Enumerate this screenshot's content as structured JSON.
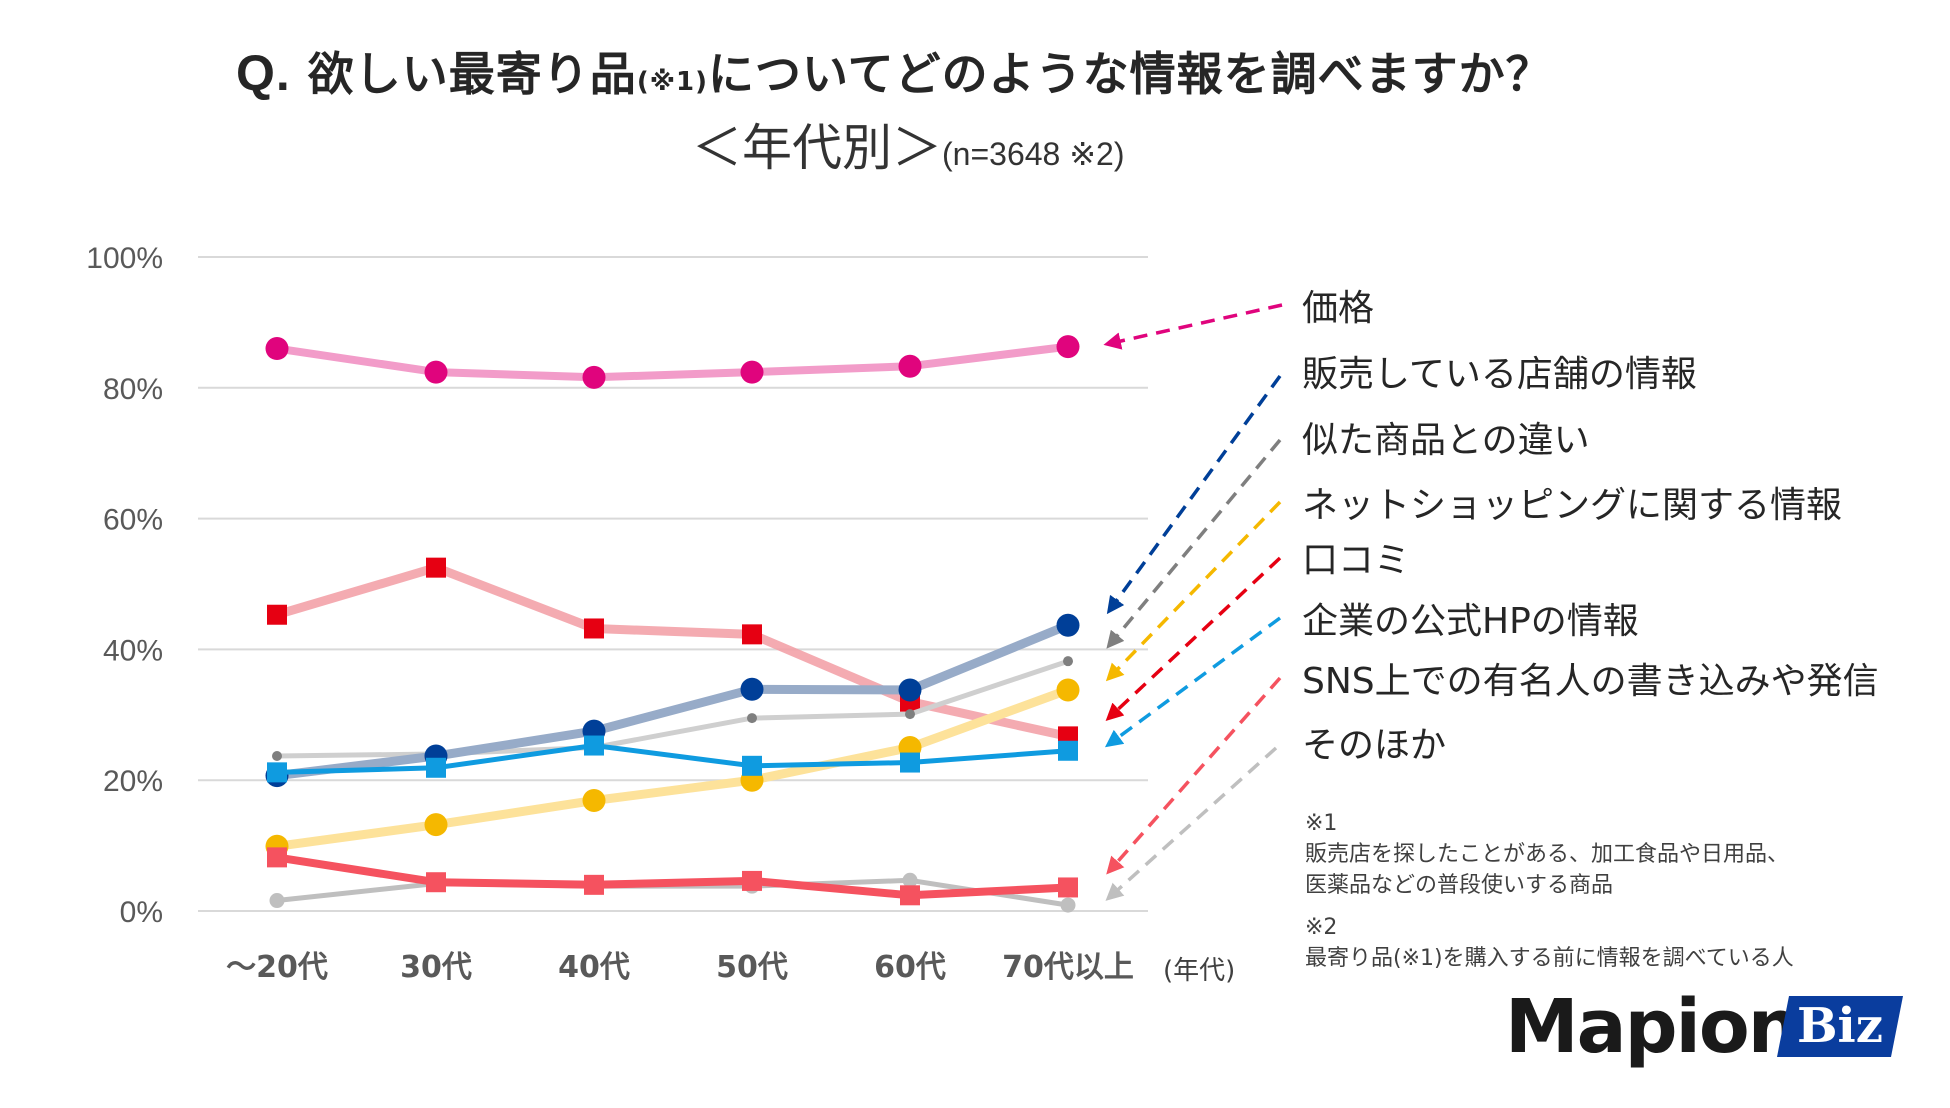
{
  "title": {
    "prefix": "Q.",
    "text_before": " 欲しい最寄り品",
    "note_ref": "(※1)",
    "text_after": "についてどのような情報を調べますか？"
  },
  "subtitle": {
    "main": "＜年代別＞",
    "sample": "(n=3648 ※2)"
  },
  "legend": [
    {
      "label": "価格",
      "color": "#e0047d"
    },
    {
      "label": "販売している店舗の情報",
      "color": "#003f98"
    },
    {
      "label": "似た商品との違い",
      "color": "#7f7f7f"
    },
    {
      "label": "ネットショッピングに関する情報",
      "color": "#f5b800"
    },
    {
      "label": "口コミ",
      "color": "#e60012"
    },
    {
      "label": "企業の公式HPの情報",
      "color": "#0f9be0"
    },
    {
      "label": "SNS上での有名人の書き込みや発信",
      "color": "#f5525f"
    },
    {
      "label": "そのほか",
      "color": "#bfbfbf"
    }
  ],
  "notes": {
    "note1_mark": "※1",
    "note1_line1": "販売店を探したことがある、加工食品や日用品、",
    "note1_line2": "医薬品などの普段使いする商品",
    "note2_mark": "※2",
    "note2_line1": "最寄り品(※1)を購入する前に情報を調べている人"
  },
  "logo": {
    "name": "Mapion",
    "badge": "Biz",
    "badge_color": "#0a3d9e"
  },
  "chart_data": {
    "type": "line",
    "title": "Q. 欲しい最寄り品(※1)についてどのような情報を調べますか？",
    "subtitle": "＜年代別＞(n=3648 ※2)",
    "xlabel": "(年代)",
    "ylabel": "",
    "categories": [
      "～20代",
      "30代",
      "40代",
      "50代",
      "60代",
      "70代以上"
    ],
    "ylim": [
      0,
      100
    ],
    "yticks": [
      0,
      20,
      40,
      60,
      80,
      100
    ],
    "ytick_labels": [
      "0%",
      "20%",
      "40%",
      "60%",
      "80%",
      "100%"
    ],
    "grid": true,
    "legend_position": "right",
    "series": [
      {
        "name": "価格",
        "values": [
          86.0,
          82.4,
          81.6,
          82.4,
          83.3,
          86.3
        ],
        "marker": "circle",
        "marker_color": "#e0047d",
        "line_color": "#f29cc9"
      },
      {
        "name": "販売している店舗の情報",
        "values": [
          20.7,
          23.7,
          27.5,
          33.9,
          33.8,
          43.7
        ],
        "marker": "circle",
        "marker_color": "#003f98",
        "line_color": "#97abc8"
      },
      {
        "name": "似た商品との違い",
        "values": [
          23.7,
          24.0,
          25.0,
          29.5,
          30.1,
          38.2
        ],
        "marker": "small-circle",
        "marker_color": "#7f7f7f",
        "line_color": "#cfcfcf"
      },
      {
        "name": "ネットショッピングに関する情報",
        "values": [
          9.9,
          13.2,
          16.9,
          20.0,
          25.0,
          33.8
        ],
        "marker": "circle",
        "marker_color": "#f5b800",
        "line_color": "#fde29a"
      },
      {
        "name": "口コミ",
        "values": [
          45.3,
          52.5,
          43.2,
          42.3,
          32.0,
          26.7
        ],
        "marker": "square",
        "marker_color": "#e60012",
        "line_color": "#f29ca3"
      },
      {
        "name": "企業の公式HPの情報",
        "values": [
          21.2,
          21.9,
          25.3,
          22.2,
          22.7,
          24.5
        ],
        "marker": "square",
        "marker_color": "#0f9be0",
        "line_color": "#0f9be0"
      },
      {
        "name": "SNS上での有名人の書き込みや発信",
        "values": [
          8.2,
          4.4,
          4.0,
          4.6,
          2.4,
          3.6
        ],
        "marker": "square",
        "marker_color": "#f5525f",
        "line_color": "#f5525f"
      },
      {
        "name": "そのほか",
        "values": [
          1.6,
          4.2,
          3.8,
          3.8,
          4.7,
          0.9
        ],
        "marker": "circle-sm",
        "marker_color": "#bfbfbf",
        "line_color": "#bfbfbf"
      }
    ]
  }
}
